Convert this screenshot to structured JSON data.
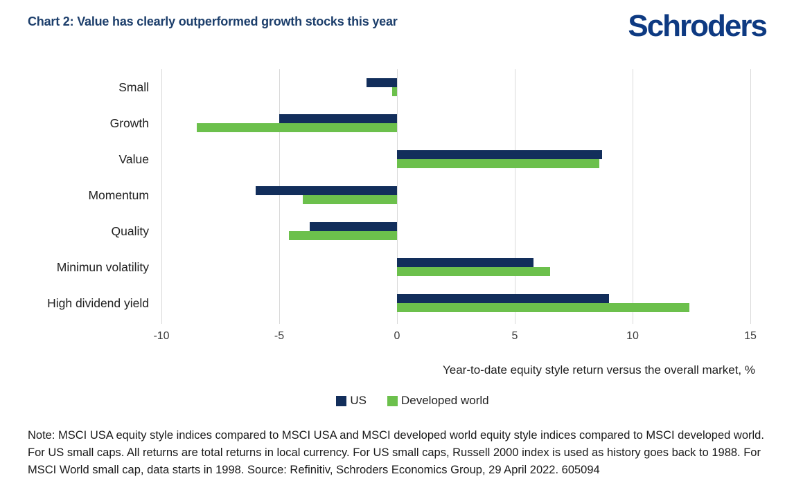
{
  "header": {
    "title": "Chart 2: Value has clearly outperformed growth stocks this year",
    "logo": "Schroders",
    "title_color": "#1c3e6b",
    "logo_color": "#0e3a82"
  },
  "chart_data": {
    "type": "bar",
    "orientation": "horizontal",
    "categories": [
      "Small",
      "Growth",
      "Value",
      "Momentum",
      "Quality",
      "Minimun volatility",
      "High dividend yield"
    ],
    "series": [
      {
        "name": "US",
        "color": "#122e5b",
        "values": [
          -1.3,
          -5.0,
          8.7,
          -6.0,
          -3.7,
          5.8,
          9.0
        ]
      },
      {
        "name": "Developed world",
        "color": "#6cc04c",
        "values": [
          -0.2,
          -8.5,
          8.6,
          -4.0,
          -4.6,
          6.5,
          12.4
        ]
      }
    ],
    "xlabel": "Year-to-date equity style return versus the overall market, %",
    "xticks": [
      -10,
      -5,
      0,
      5,
      10,
      15
    ],
    "xlim": [
      -10.3,
      15.6
    ],
    "grid": true,
    "gridline_color": "#d9d9d9",
    "legend_position": "bottom"
  },
  "footnote": "Note: MSCI USA equity style indices compared to MSCI USA and MSCI developed world equity style indices compared to MSCI developed world. For US small caps. All returns are total returns in local currency. For US small caps, Russell 2000 index is used as history goes back to 1988. For MSCI World small cap, data starts in 1998. Source: Refinitiv, Schroders Economics Group, 29 April 2022. 605094"
}
